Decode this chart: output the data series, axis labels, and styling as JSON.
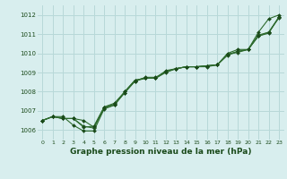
{
  "x": [
    0,
    1,
    2,
    3,
    4,
    5,
    6,
    7,
    8,
    9,
    10,
    11,
    12,
    13,
    14,
    15,
    16,
    17,
    18,
    19,
    20,
    21,
    22,
    23
  ],
  "series": [
    [
      1006.5,
      1006.7,
      1006.6,
      1006.6,
      1006.2,
      1006.1,
      1007.15,
      1007.3,
      1008.0,
      1008.6,
      1008.7,
      1008.7,
      1009.1,
      1009.2,
      1009.3,
      1009.3,
      1009.3,
      1009.4,
      1010.0,
      1010.2,
      1010.2,
      1011.1,
      1011.8,
      1012.0
    ],
    [
      1006.5,
      1006.7,
      1006.6,
      1006.6,
      1006.5,
      1006.15,
      1007.2,
      1007.35,
      1007.95,
      1008.55,
      1008.75,
      1008.75,
      1009.05,
      1009.2,
      1009.3,
      1009.3,
      1009.35,
      1009.4,
      1009.95,
      1010.1,
      1010.2,
      1010.95,
      1011.1,
      1011.9
    ],
    [
      1006.5,
      1006.7,
      1006.7,
      1006.25,
      1005.95,
      1005.95,
      1007.1,
      1007.3,
      1007.95,
      1008.55,
      1008.7,
      1008.7,
      1009.05,
      1009.2,
      1009.3,
      1009.3,
      1009.35,
      1009.4,
      1009.9,
      1010.1,
      1010.2,
      1010.9,
      1011.1,
      1011.85
    ],
    [
      1006.5,
      1006.7,
      1006.6,
      1006.6,
      1006.15,
      1006.2,
      1007.2,
      1007.4,
      1008.0,
      1008.6,
      1008.7,
      1008.7,
      1009.0,
      1009.2,
      1009.3,
      1009.3,
      1009.35,
      1009.4,
      1009.95,
      1010.05,
      1010.2,
      1010.9,
      1011.05,
      1011.9
    ]
  ],
  "line_colors": [
    "#2d6a2d",
    "#2d6a2d",
    "#2d6a2d",
    "#2d6a2d"
  ],
  "marker_color": "#1a4a1a",
  "bg_color": "#d8eeee",
  "grid_color": "#b8d8d8",
  "ylim": [
    1005.5,
    1012.5
  ],
  "xlim": [
    -0.5,
    23.5
  ],
  "yticks": [
    1006,
    1007,
    1008,
    1009,
    1010,
    1011,
    1012
  ],
  "xticks": [
    0,
    1,
    2,
    3,
    4,
    5,
    6,
    7,
    8,
    9,
    10,
    11,
    12,
    13,
    14,
    15,
    16,
    17,
    18,
    19,
    20,
    21,
    22,
    23
  ],
  "xlabel": "Graphe pression niveau de la mer (hPa)",
  "xlabel_color": "#1a4a1a",
  "tick_color": "#1a4a1a"
}
